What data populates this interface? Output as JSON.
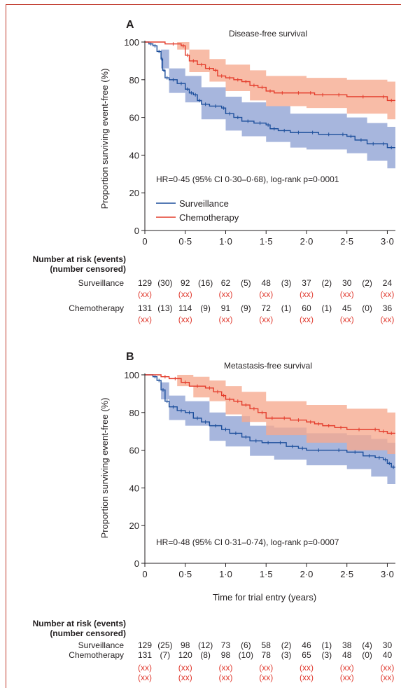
{
  "colors": {
    "surveillance_line": "#1d4f9c",
    "surveillance_band": "#8ea2d4",
    "chemotherapy_line": "#e43d2c",
    "chemotherapy_band": "#f6a98e",
    "censored_text": "#e03a2f",
    "frame": "#c0392b"
  },
  "chart_data": [
    {
      "type": "line",
      "panel": "A",
      "title": "Disease-free survival",
      "ylabel": "Proportion surviving event-free (%)",
      "xlabel": "",
      "xlim": [
        0,
        3.1
      ],
      "ylim": [
        0,
        100
      ],
      "xticks": [
        "0",
        "0·5",
        "1·0",
        "1·5",
        "2·0",
        "2·5",
        "3·0"
      ],
      "yticks": [
        "0",
        "20",
        "40",
        "60",
        "80",
        "100"
      ],
      "annotation": "HR=0·45 (95% CI 0·30–0·68), log-rank p=0·0001",
      "legend": [
        "Surveillance",
        "Chemotherapy"
      ],
      "series": [
        {
          "name": "Surveillance",
          "points": [
            [
              0,
              100
            ],
            [
              0.05,
              99
            ],
            [
              0.1,
              98
            ],
            [
              0.15,
              95
            ],
            [
              0.2,
              91
            ],
            [
              0.22,
              85
            ],
            [
              0.25,
              81
            ],
            [
              0.3,
              80
            ],
            [
              0.4,
              78
            ],
            [
              0.5,
              75
            ],
            [
              0.55,
              73
            ],
            [
              0.6,
              72
            ],
            [
              0.65,
              69
            ],
            [
              0.7,
              67
            ],
            [
              0.8,
              66
            ],
            [
              0.95,
              65
            ],
            [
              1.0,
              62
            ],
            [
              1.1,
              60
            ],
            [
              1.2,
              58
            ],
            [
              1.35,
              57
            ],
            [
              1.5,
              56
            ],
            [
              1.55,
              54
            ],
            [
              1.65,
              53
            ],
            [
              1.8,
              52
            ],
            [
              2.0,
              52
            ],
            [
              2.15,
              51
            ],
            [
              2.4,
              51
            ],
            [
              2.5,
              50
            ],
            [
              2.6,
              48
            ],
            [
              2.75,
              46
            ],
            [
              2.9,
              46
            ],
            [
              3.0,
              44
            ],
            [
              3.1,
              44
            ]
          ],
          "band": [
            [
              0,
              100,
              100
            ],
            [
              0.2,
              96,
              86
            ],
            [
              0.3,
              86,
              73
            ],
            [
              0.5,
              82,
              68
            ],
            [
              0.7,
              76,
              59
            ],
            [
              1.0,
              71,
              53
            ],
            [
              1.2,
              68,
              50
            ],
            [
              1.5,
              66,
              47
            ],
            [
              1.8,
              62,
              44
            ],
            [
              2.0,
              62,
              43
            ],
            [
              2.5,
              60,
              41
            ],
            [
              2.75,
              57,
              37
            ],
            [
              3.0,
              55,
              33
            ],
            [
              3.1,
              54,
              32
            ]
          ]
        },
        {
          "name": "Chemotherapy",
          "points": [
            [
              0,
              100
            ],
            [
              0.25,
              99
            ],
            [
              0.45,
              98
            ],
            [
              0.5,
              93
            ],
            [
              0.55,
              90
            ],
            [
              0.65,
              88
            ],
            [
              0.75,
              86
            ],
            [
              0.85,
              85
            ],
            [
              0.9,
              82
            ],
            [
              1.0,
              81
            ],
            [
              1.1,
              80
            ],
            [
              1.2,
              79
            ],
            [
              1.3,
              77
            ],
            [
              1.4,
              76
            ],
            [
              1.5,
              74
            ],
            [
              1.6,
              73
            ],
            [
              1.8,
              73
            ],
            [
              2.0,
              73
            ],
            [
              2.1,
              72
            ],
            [
              2.3,
              72
            ],
            [
              2.5,
              71
            ],
            [
              2.9,
              71
            ],
            [
              3.0,
              69
            ],
            [
              3.1,
              69
            ]
          ],
          "band": [
            [
              0,
              100,
              100
            ],
            [
              0.4,
              100,
              96
            ],
            [
              0.55,
              96,
              84
            ],
            [
              0.8,
              91,
              79
            ],
            [
              1.0,
              88,
              74
            ],
            [
              1.3,
              85,
              69
            ],
            [
              1.5,
              82,
              66
            ],
            [
              2.0,
              81,
              65
            ],
            [
              2.5,
              80,
              62
            ],
            [
              3.0,
              79,
              59
            ],
            [
              3.1,
              79,
              58
            ]
          ]
        }
      ],
      "risk_table": {
        "header_line1": "Number at risk (events)",
        "header_line2": "(number censored)",
        "rows": [
          {
            "label": "Surveillance",
            "at_risk": [
              "129",
              "92",
              "62",
              "48",
              "37",
              "30",
              "24"
            ],
            "events": [
              "(30)",
              "(16)",
              "(5)",
              "(3)",
              "(2)",
              "(2)"
            ],
            "censored": [
              "(xx)",
              "(xx)",
              "(xx)",
              "(xx)",
              "(xx)",
              "(xx)",
              "(xx)"
            ]
          },
          {
            "label": "Chemotherapy",
            "at_risk": [
              "131",
              "114",
              "91",
              "72",
              "60",
              "45",
              "36"
            ],
            "events": [
              "(13)",
              "(9)",
              "(9)",
              "(1)",
              "(1)",
              "(0)"
            ],
            "censored": [
              "(xx)",
              "(xx)",
              "(xx)",
              "(xx)",
              "(xx)",
              "(xx)",
              "(xx)"
            ]
          }
        ]
      }
    },
    {
      "type": "line",
      "panel": "B",
      "title": "Metastasis-free survival",
      "ylabel": "Proportion surviving event-free (%)",
      "xlabel": "Time for trial entry (years)",
      "xlim": [
        0,
        3.1
      ],
      "ylim": [
        0,
        100
      ],
      "xticks": [
        "0",
        "0·5",
        "1·0",
        "1·5",
        "2·0",
        "2·5",
        "3·0"
      ],
      "yticks": [
        "0",
        "20",
        "40",
        "60",
        "80",
        "100"
      ],
      "annotation": "HR=0·48 (95% CI 0·31–0·74), log-rank p=0·0007",
      "legend": [],
      "series": [
        {
          "name": "Surveillance",
          "points": [
            [
              0,
              100
            ],
            [
              0.1,
              99
            ],
            [
              0.15,
              97
            ],
            [
              0.2,
              92
            ],
            [
              0.25,
              86
            ],
            [
              0.3,
              83
            ],
            [
              0.4,
              81
            ],
            [
              0.5,
              80
            ],
            [
              0.6,
              77
            ],
            [
              0.7,
              75
            ],
            [
              0.8,
              73
            ],
            [
              0.95,
              71
            ],
            [
              1.05,
              69
            ],
            [
              1.2,
              67
            ],
            [
              1.3,
              65
            ],
            [
              1.45,
              64
            ],
            [
              1.6,
              64
            ],
            [
              1.75,
              62
            ],
            [
              1.9,
              61
            ],
            [
              2.0,
              60
            ],
            [
              2.3,
              60
            ],
            [
              2.5,
              59
            ],
            [
              2.7,
              57
            ],
            [
              2.85,
              56
            ],
            [
              2.95,
              55
            ],
            [
              3.0,
              53
            ],
            [
              3.05,
              51
            ],
            [
              3.1,
              51
            ]
          ],
          "band": [
            [
              0,
              100,
              100
            ],
            [
              0.2,
              96,
              87
            ],
            [
              0.3,
              89,
              76
            ],
            [
              0.5,
              86,
              73
            ],
            [
              0.8,
              80,
              65
            ],
            [
              1.0,
              78,
              62
            ],
            [
              1.3,
              73,
              57
            ],
            [
              1.6,
              72,
              55
            ],
            [
              2.0,
              69,
              52
            ],
            [
              2.5,
              68,
              50
            ],
            [
              2.8,
              66,
              46
            ],
            [
              3.0,
              64,
              42
            ],
            [
              3.1,
              62,
              40
            ]
          ]
        },
        {
          "name": "Chemotherapy",
          "points": [
            [
              0,
              100
            ],
            [
              0.2,
              99
            ],
            [
              0.3,
              98
            ],
            [
              0.45,
              96
            ],
            [
              0.55,
              94
            ],
            [
              0.75,
              93
            ],
            [
              0.85,
              91
            ],
            [
              0.95,
              89
            ],
            [
              1.0,
              87
            ],
            [
              1.1,
              86
            ],
            [
              1.2,
              84
            ],
            [
              1.3,
              82
            ],
            [
              1.4,
              80
            ],
            [
              1.5,
              77
            ],
            [
              1.65,
              77
            ],
            [
              1.8,
              76
            ],
            [
              2.0,
              75
            ],
            [
              2.1,
              74
            ],
            [
              2.2,
              73
            ],
            [
              2.35,
              72
            ],
            [
              2.5,
              71
            ],
            [
              2.8,
              71
            ],
            [
              2.9,
              70
            ],
            [
              3.0,
              69
            ],
            [
              3.1,
              69
            ]
          ],
          "band": [
            [
              0,
              100,
              100
            ],
            [
              0.4,
              100,
              94
            ],
            [
              0.6,
              99,
              88
            ],
            [
              0.8,
              97,
              86
            ],
            [
              1.0,
              94,
              79
            ],
            [
              1.2,
              91,
              75
            ],
            [
              1.5,
              86,
              68
            ],
            [
              2.0,
              84,
              64
            ],
            [
              2.5,
              82,
              60
            ],
            [
              3.0,
              80,
              58
            ],
            [
              3.1,
              80,
              57
            ]
          ]
        }
      ],
      "risk_table": {
        "header_line1": "Number at risk (events)",
        "header_line2": "(number censored)",
        "rows": [
          {
            "label": "Surveillance",
            "at_risk": [
              "129",
              "98",
              "73",
              "58",
              "46",
              "38",
              "30"
            ],
            "events": [
              "(25)",
              "(12)",
              "(6)",
              "(2)",
              "(1)",
              "(4)"
            ],
            "censored": [
              "(xx)",
              "(xx)",
              "(xx)",
              "(xx)",
              "(xx)",
              "(xx)",
              "(xx)"
            ]
          },
          {
            "label": "Chemotherapy",
            "at_risk": [
              "131",
              "120",
              "98",
              "78",
              "65",
              "48",
              "40"
            ],
            "events": [
              "(7)",
              "(8)",
              "(10)",
              "(3)",
              "(3)",
              "(0)"
            ],
            "censored": [
              "(xx)",
              "(xx)",
              "(xx)",
              "(xx)",
              "(xx)",
              "(xx)",
              "(xx)"
            ]
          }
        ]
      }
    }
  ]
}
